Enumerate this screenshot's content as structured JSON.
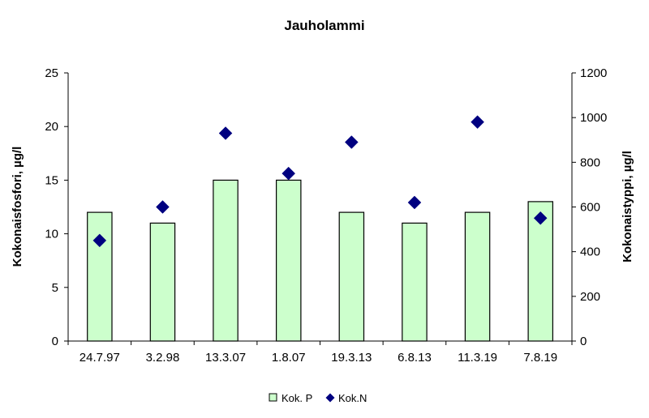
{
  "chart_data": {
    "type": "bar",
    "title": "Jauholammi",
    "categories": [
      "24.7.97",
      "3.2.98",
      "13.3.07",
      "1.8.07",
      "19.3.13",
      "6.8.13",
      "11.3.19",
      "7.8.19"
    ],
    "series": [
      {
        "name": "Kok. P",
        "type": "bar",
        "axis": "left",
        "values": [
          12,
          11,
          15,
          15,
          12,
          11,
          12,
          13
        ],
        "color": "#CCFFCC",
        "stroke": "#000000"
      },
      {
        "name": "Kok.N",
        "type": "scatter",
        "marker": "diamond",
        "axis": "right",
        "values": [
          450,
          600,
          930,
          750,
          890,
          620,
          980,
          550
        ],
        "color": "#000080"
      }
    ],
    "y_left": {
      "label": "Kokonaisfosfori, µg/l",
      "min": 0,
      "max": 25,
      "ticks": [
        0,
        5,
        10,
        15,
        20,
        25
      ]
    },
    "y_right": {
      "label": "Kokonaistyppi, µg/l",
      "min": 0,
      "max": 1200,
      "ticks": [
        0,
        200,
        400,
        600,
        800,
        1000,
        1200
      ]
    },
    "grid": false,
    "legend_position": "bottom"
  }
}
